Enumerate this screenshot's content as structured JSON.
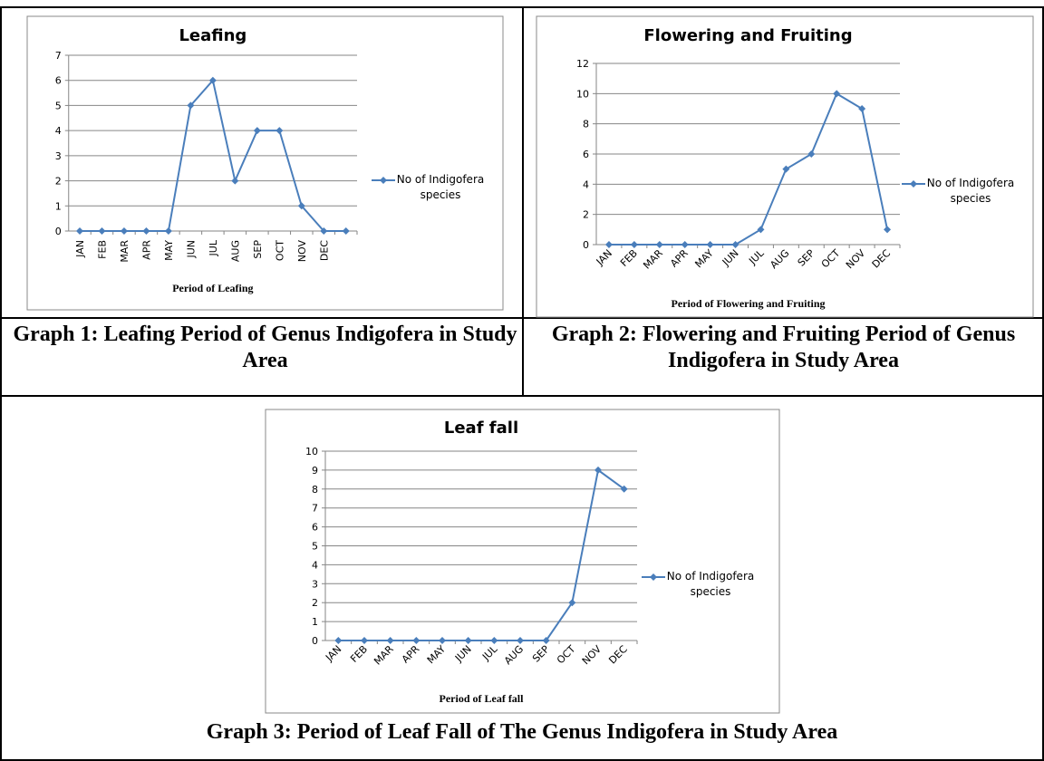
{
  "chart_data": [
    {
      "type": "line",
      "title": "Leafing",
      "x_label": "Period of Leafing",
      "categories": [
        "JAN",
        "FEB",
        "MAR",
        "APR",
        "MAY",
        "JUN",
        "JUL",
        "AUG",
        "SEP",
        "OCT",
        "NOV",
        "DEC",
        null
      ],
      "series": [
        {
          "name": "No of Indigofera species",
          "color": "#4a7ebb",
          "values": [
            0,
            0,
            0,
            0,
            0,
            5,
            6,
            2,
            4,
            4,
            1,
            0,
            0
          ]
        }
      ],
      "ylim": [
        0,
        7
      ],
      "yticks": [
        0,
        1,
        2,
        3,
        4,
        5,
        6,
        7
      ],
      "grid": true,
      "legend": "right",
      "caption": "Graph 1: Leafing Period of Genus Indigofera in Study Area"
    },
    {
      "type": "line",
      "title": "Flowering and Fruiting",
      "x_label": "Period of Flowering and Fruiting",
      "categories": [
        "JAN",
        "FEB",
        "MAR",
        "APR",
        "MAY",
        "JUN",
        "JUL",
        "AUG",
        "SEP",
        "OCT",
        "NOV",
        "DEC"
      ],
      "series": [
        {
          "name": "No of Indigofera species",
          "color": "#4a7ebb",
          "values": [
            0,
            0,
            0,
            0,
            0,
            0,
            1,
            5,
            6,
            10,
            9,
            1
          ]
        }
      ],
      "ylim": [
        0,
        12
      ],
      "yticks": [
        0,
        2,
        4,
        6,
        8,
        10,
        12
      ],
      "grid": true,
      "legend": "right",
      "caption": "Graph 2: Flowering and Fruiting Period of Genus Indigofera in Study Area"
    },
    {
      "type": "line",
      "title": "Leaf fall",
      "x_label": "Period of Leaf fall",
      "categories": [
        "JAN",
        "FEB",
        "MAR",
        "APR",
        "MAY",
        "JUN",
        "JUL",
        "AUG",
        "SEP",
        "OCT",
        "NOV",
        "DEC"
      ],
      "series": [
        {
          "name": "No of Indigofera species",
          "color": "#4a7ebb",
          "values": [
            0,
            0,
            0,
            0,
            0,
            0,
            0,
            0,
            0,
            2,
            9,
            8
          ]
        }
      ],
      "ylim": [
        0,
        10
      ],
      "yticks": [
        0,
        1,
        2,
        3,
        4,
        5,
        6,
        7,
        8,
        9,
        10
      ],
      "grid": true,
      "legend": "right",
      "caption": "Graph 3: Period of Leaf Fall of The Genus Indigofera in Study Area"
    }
  ]
}
